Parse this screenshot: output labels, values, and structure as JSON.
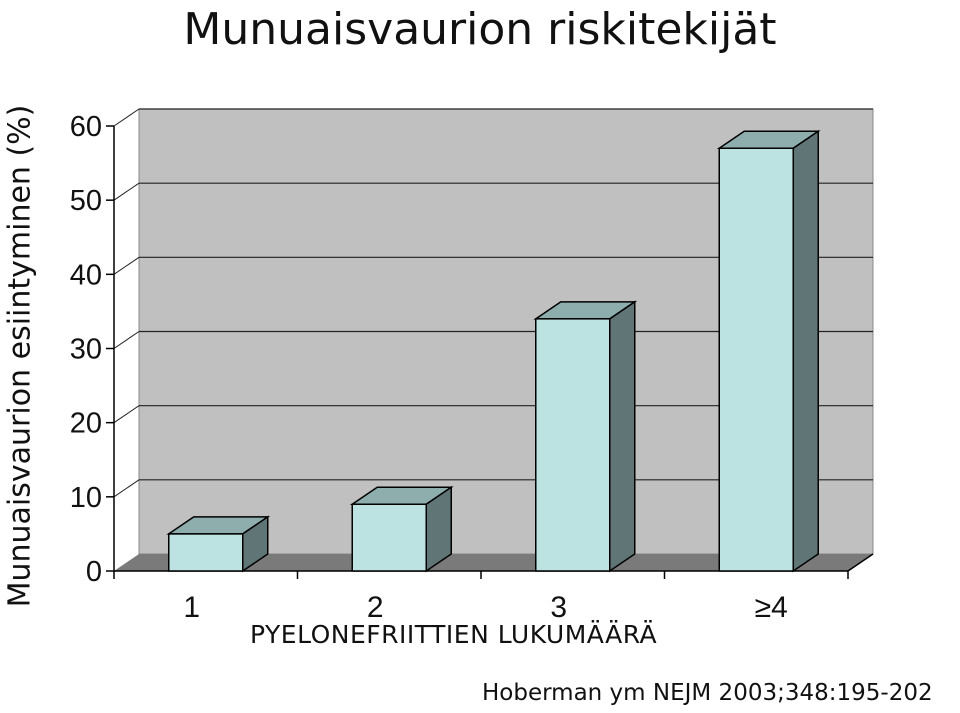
{
  "chart_data": {
    "type": "bar",
    "title": "Munuaisvaurion riskitekijät",
    "xlabel": "PYELONEFRIITTIEN LUKUMÄÄRÄ",
    "ylabel": "Munuaisvaurion esiintyminen (%)",
    "categories": [
      "1",
      "2",
      "3",
      "≥4"
    ],
    "values": [
      5,
      9,
      34,
      57
    ],
    "ylim": [
      0,
      60
    ],
    "yticks": [
      "0",
      "10",
      "20",
      "30",
      "40",
      "50",
      "60"
    ],
    "grid": true,
    "colors": {
      "bar_front": "#bde2e2",
      "bar_top": "#8eaeae",
      "bar_side": "#5f7576",
      "wall": "#c0c0c0",
      "floor": "#7a7a7a"
    }
  },
  "citation": "Hoberman ym NEJM 2003;348:195-202"
}
